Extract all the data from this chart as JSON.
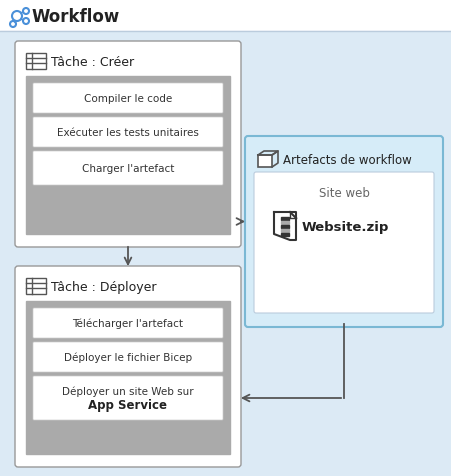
{
  "title": "Workflow",
  "bg_outer": "#dceaf5",
  "bg_white": "#ffffff",
  "bg_artifact": "#d6ecf8",
  "bg_inner_gray": "#aaaaaa",
  "border_task": "#999999",
  "border_artifact": "#7ab8d4",
  "task1_title": "Tâche : Créer",
  "task2_title": "Tâche : Déployer",
  "artifact_title": "Artefacts de workflow",
  "artifact_sub": "Site web",
  "artifact_file": "Website.zip",
  "task1_steps": [
    "Compiler le code",
    "Exécuter les tests unitaires",
    "Charger l'artefact"
  ],
  "task2_steps": [
    "Télécharger l'artefact",
    "Déployer le fichier Bicep",
    "Déployer un site Web sur"
  ],
  "task2_step3_line2": "App Service",
  "fig_w": 4.52,
  "fig_h": 4.77,
  "dpi": 100
}
